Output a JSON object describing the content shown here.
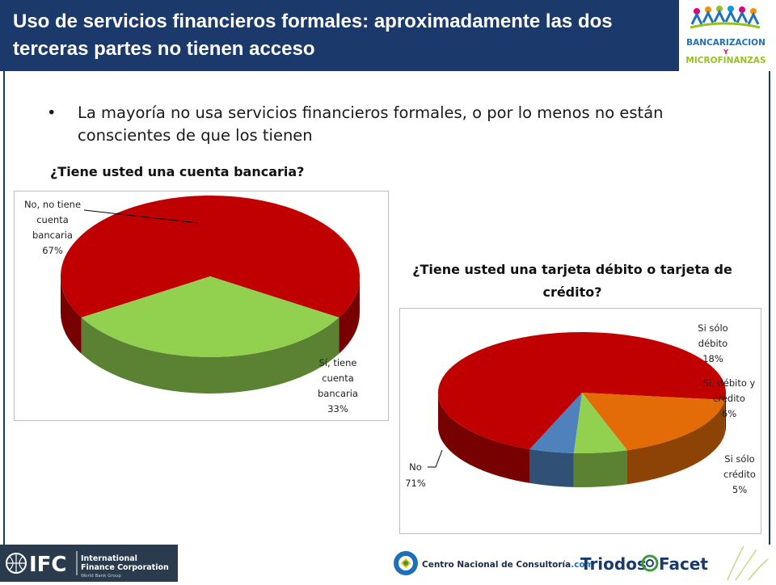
{
  "slide": {
    "title": "Uso de servicios financieros formales: aproximadamente las dos terceras partes no tienen acceso",
    "bullet_symbol": "•",
    "bullet_text": "La mayoría no usa servicios financieros formales, o por lo menos no están conscientes de que los tienen",
    "question_1": "¿Tiene usted una cuenta bancaria?",
    "question_2": "¿Tiene usted una tarjeta débito o tarjeta de crédito?"
  },
  "logos": {
    "congress_line1": "BANCARIZACION",
    "congress_line2": "Y",
    "congress_line3": "MICROFINANZAS",
    "ifc_mark": "IFC",
    "ifc_name_line1": "International",
    "ifc_name_line2": "Finance Corporation",
    "ifc_sub": "World Bank Group",
    "cnc_name": "Centro Nacional de Consultoría",
    "cnc_suffix": ".com",
    "triodos": "Triodos",
    "facet": "Facet"
  },
  "colors": {
    "header_bg": "#1b3a6b",
    "red": "#c00000",
    "green": "#92d050",
    "orange": "#e36c09",
    "blue": "#4f81bd"
  },
  "chart_data": [
    {
      "type": "pie",
      "style": "3d",
      "title": "¿Tiene usted una cuenta bancaria?",
      "slices": [
        {
          "label": "No, no tiene cuenta bancaria",
          "value": 67,
          "display": "67%",
          "color": "#c00000"
        },
        {
          "label": "Sí, tiene cuenta bancaria",
          "value": 33,
          "display": "33%",
          "color": "#92d050"
        }
      ]
    },
    {
      "type": "pie",
      "style": "3d",
      "title": "¿Tiene usted una tarjeta débito o tarjeta de crédito?",
      "slices": [
        {
          "label": "No",
          "value": 71,
          "display": "71%",
          "color": "#c00000"
        },
        {
          "label": "Si  sólo débito",
          "value": 18,
          "display": "18%",
          "color": "#e36c09"
        },
        {
          "label": "Si, débito y crédito",
          "value": 6,
          "display": "6%",
          "color": "#92d050"
        },
        {
          "label": "Si sólo crédito",
          "value": 5,
          "display": "5%",
          "color": "#4f81bd"
        }
      ]
    }
  ]
}
